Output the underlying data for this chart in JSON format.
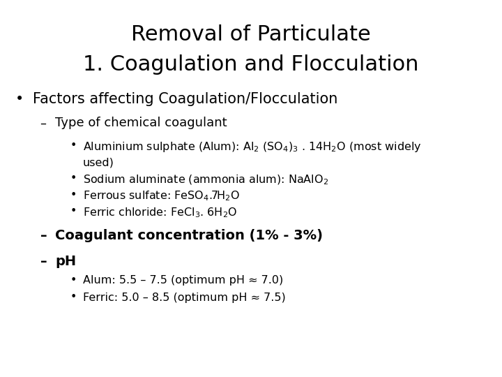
{
  "title_line1": "Removal of Particulate",
  "title_line2": "1. Coagulation and Flocculation",
  "background_color": "#ffffff",
  "text_color": "#000000",
  "title_fontsize": 22,
  "body_fontsize": 14,
  "sub_fontsize": 13,
  "subsub_fontsize": 11.5
}
